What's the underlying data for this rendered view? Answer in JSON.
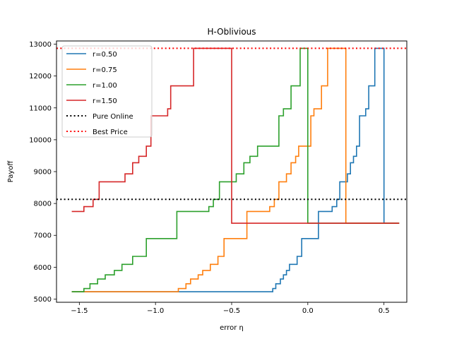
{
  "chart_data": {
    "type": "line",
    "title": "H-Oblivious",
    "xlabel": "error η",
    "ylabel": "Payoff",
    "xlim": [
      -1.65,
      0.65
    ],
    "ylim": [
      4900,
      13100
    ],
    "xticks": [
      -1.5,
      -1.0,
      -0.5,
      0.0,
      0.5
    ],
    "xtick_labels": [
      "−1.5",
      "−1.0",
      "−0.5",
      "0.0",
      "0.5"
    ],
    "yticks": [
      5000,
      6000,
      7000,
      8000,
      9000,
      10000,
      11000,
      12000,
      13000
    ],
    "ytick_labels": [
      "5000",
      "6000",
      "7000",
      "8000",
      "9000",
      "10000",
      "11000",
      "12000",
      "13000"
    ],
    "grid": false,
    "legend_position": "top-left",
    "series": [
      {
        "name": "r=0.50",
        "color": "#1f77b4",
        "style": "solid",
        "x": [
          -1.55,
          -0.23,
          -0.23,
          -0.21,
          -0.21,
          -0.18,
          -0.18,
          -0.16,
          -0.16,
          -0.14,
          -0.14,
          -0.12,
          -0.12,
          -0.07,
          -0.07,
          -0.04,
          -0.04,
          0.07,
          0.07,
          0.16,
          0.16,
          0.19,
          0.19,
          0.21,
          0.21,
          0.26,
          0.26,
          0.28,
          0.28,
          0.3,
          0.3,
          0.32,
          0.32,
          0.34,
          0.34,
          0.38,
          0.38,
          0.4,
          0.4,
          0.44,
          0.44,
          0.48,
          0.48,
          0.5,
          0.5,
          0.6
        ],
        "y": [
          5230,
          5230,
          5330,
          5330,
          5480,
          5480,
          5630,
          5630,
          5760,
          5760,
          5900,
          5900,
          6090,
          6090,
          6340,
          6340,
          6900,
          6900,
          7750,
          7750,
          7900,
          7900,
          8130,
          8130,
          8680,
          8680,
          8930,
          8930,
          9280,
          9280,
          9480,
          9480,
          9800,
          9800,
          10750,
          10750,
          10970,
          10970,
          11690,
          11690,
          12870,
          12870,
          12870,
          12870,
          7380,
          7380
        ]
      },
      {
        "name": "r=0.75",
        "color": "#ff7f0e",
        "style": "solid",
        "x": [
          -1.55,
          -0.85,
          -0.85,
          -0.8,
          -0.8,
          -0.77,
          -0.77,
          -0.72,
          -0.72,
          -0.69,
          -0.69,
          -0.64,
          -0.64,
          -0.59,
          -0.59,
          -0.55,
          -0.55,
          -0.4,
          -0.4,
          -0.25,
          -0.25,
          -0.22,
          -0.22,
          -0.19,
          -0.19,
          -0.14,
          -0.14,
          -0.11,
          -0.11,
          -0.08,
          -0.08,
          -0.06,
          -0.06,
          0.02,
          0.02,
          0.04,
          0.04,
          0.09,
          0.09,
          0.13,
          0.13,
          0.17,
          0.17,
          0.25,
          0.25,
          0.6
        ],
        "y": [
          5230,
          5230,
          5330,
          5330,
          5480,
          5480,
          5630,
          5630,
          5760,
          5760,
          5900,
          5900,
          6090,
          6090,
          6340,
          6340,
          6900,
          6900,
          7750,
          7750,
          7900,
          7900,
          8130,
          8130,
          8680,
          8680,
          8930,
          8930,
          9280,
          9280,
          9480,
          9480,
          9800,
          9800,
          10750,
          10750,
          10970,
          10970,
          11690,
          11690,
          12870,
          12870,
          12870,
          12870,
          7380,
          7380
        ]
      },
      {
        "name": "r=1.00",
        "color": "#2ca02c",
        "style": "solid",
        "x": [
          -1.55,
          -1.47,
          -1.47,
          -1.43,
          -1.43,
          -1.38,
          -1.38,
          -1.33,
          -1.33,
          -1.27,
          -1.27,
          -1.22,
          -1.22,
          -1.15,
          -1.15,
          -1.06,
          -1.06,
          -0.86,
          -0.86,
          -0.65,
          -0.65,
          -0.62,
          -0.62,
          -0.58,
          -0.58,
          -0.47,
          -0.47,
          -0.42,
          -0.42,
          -0.38,
          -0.38,
          -0.33,
          -0.33,
          -0.19,
          -0.19,
          -0.16,
          -0.16,
          -0.11,
          -0.11,
          -0.05,
          -0.05,
          0.0,
          0.0,
          0.0,
          0.0,
          0.6
        ],
        "y": [
          5230,
          5230,
          5330,
          5330,
          5480,
          5480,
          5630,
          5630,
          5760,
          5760,
          5900,
          5900,
          6090,
          6090,
          6340,
          6340,
          6900,
          6900,
          7750,
          7750,
          7900,
          7900,
          8130,
          8130,
          8680,
          8680,
          8930,
          8930,
          9280,
          9280,
          9480,
          9480,
          9800,
          9800,
          10750,
          10750,
          10970,
          10970,
          11690,
          11690,
          12870,
          12870,
          12870,
          12870,
          7380,
          7380
        ]
      },
      {
        "name": "r=1.50",
        "color": "#d62728",
        "style": "solid",
        "x": [
          -1.55,
          -1.47,
          -1.47,
          -1.41,
          -1.41,
          -1.37,
          -1.37,
          -1.2,
          -1.2,
          -1.15,
          -1.15,
          -1.11,
          -1.11,
          -1.06,
          -1.06,
          -1.03,
          -1.03,
          -0.92,
          -0.92,
          -0.9,
          -0.9,
          -0.85,
          -0.85,
          -0.75,
          -0.75,
          -0.65,
          -0.65,
          -0.65,
          -0.65,
          -0.5,
          -0.5,
          -0.5,
          -0.5,
          0.6
        ],
        "y": [
          7750,
          7750,
          7900,
          7900,
          8130,
          8130,
          8680,
          8680,
          8930,
          8930,
          9280,
          9280,
          9480,
          9480,
          9800,
          9800,
          10750,
          10750,
          10970,
          10970,
          11690,
          11690,
          11690,
          11690,
          12870,
          12870,
          12870,
          12870,
          12870,
          12870,
          7380,
          7380,
          7380,
          7380
        ]
      },
      {
        "name": "Pure Online",
        "color": "#000000",
        "style": "dotted",
        "x": [
          -1.65,
          0.65
        ],
        "y": [
          8130,
          8130
        ]
      },
      {
        "name": "Best Price",
        "color": "#ff0000",
        "style": "dotted",
        "x": [
          -1.65,
          0.65
        ],
        "y": [
          12870,
          12870
        ]
      }
    ]
  }
}
